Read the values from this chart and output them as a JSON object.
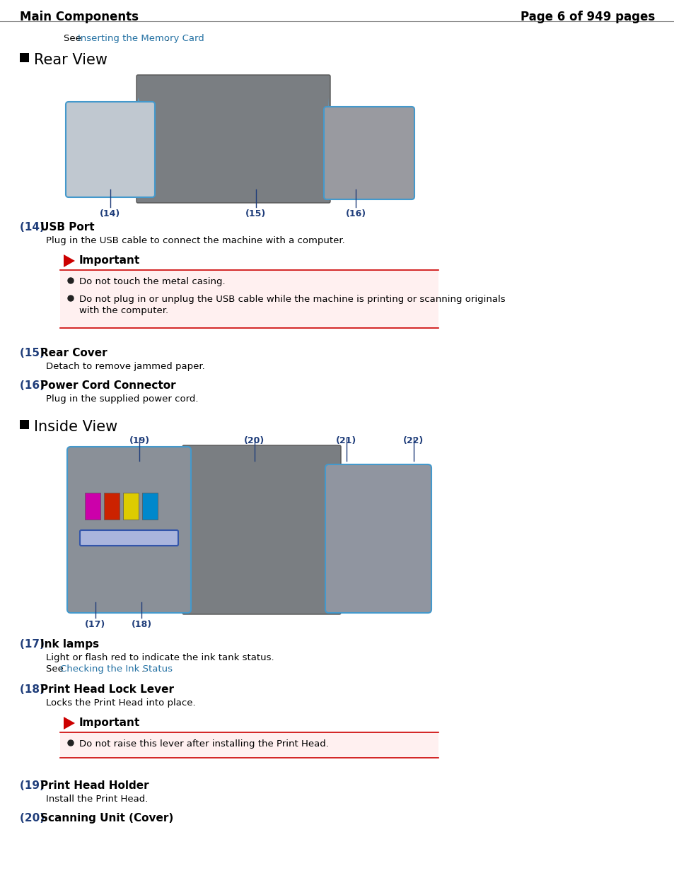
{
  "title_left": "Main Components",
  "title_right": "Page 6 of 949 pages",
  "bg_color": "#ffffff",
  "text_color": "#000000",
  "blue_color": "#1f3d7a",
  "link_color": "#2471a3",
  "red_color": "#cc0000",
  "pink_bg": "#fff0f0",
  "header_font_size": 12,
  "section_font_size": 15,
  "body_font_size": 9.5,
  "label_font_size": 11,
  "see_text": "See ",
  "see_link": "Inserting the Memory Card",
  "see_end": ".",
  "rear_view_title": "Rear View",
  "inside_view_title": "Inside View",
  "item14_num": "(14)",
  "item14_name": "USB Port",
  "item14_desc": "Plug in the USB cable to connect the machine with a computer.",
  "item14_important_title": "Important",
  "item14_bullet1": "Do not touch the metal casing.",
  "item14_bullet2a": "Do not plug in or unplug the USB cable while the machine is printing or scanning originals",
  "item14_bullet2b": "with the computer.",
  "item15_num": "(15)",
  "item15_name": "Rear Cover",
  "item15_desc": "Detach to remove jammed paper.",
  "item16_num": "(16)",
  "item16_name": "Power Cord Connector",
  "item16_desc": "Plug in the supplied power cord.",
  "item17_num": "(17)",
  "item17_name": "Ink lamps",
  "item17_desc": "Light or flash red to indicate the ink tank status.",
  "item17_see": "See ",
  "item17_link": "Checking the Ink Status",
  "item17_end": ".",
  "item18_num": "(18)",
  "item18_name": "Print Head Lock Lever",
  "item18_desc": "Locks the Print Head into place.",
  "item18_important_title": "Important",
  "item18_bullet1": "Do not raise this lever after installing the Print Head.",
  "item19_num": "(19)",
  "item19_name": "Print Head Holder",
  "item19_desc": "Install the Print Head.",
  "item20_num": "(20)",
  "item20_name": "Scanning Unit (Cover)"
}
